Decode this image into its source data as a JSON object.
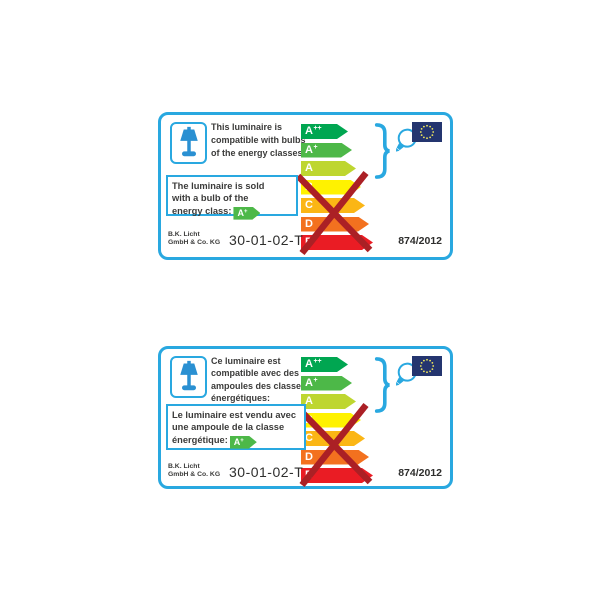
{
  "colors": {
    "accent": "#29a8e0",
    "lamp": "#2a90d2",
    "navy": "#24356f",
    "star": "#f3ea5c",
    "text": "#3b3b3a",
    "cross": "#ab2025",
    "model": "#2e2e2d"
  },
  "icons": {
    "luminaire": "table-lamp-icon",
    "bulb": "light-bulb-icon",
    "flag": "eu-flag-icon",
    "brace": "curly-brace",
    "cross": "red-cross-mark"
  },
  "labels": [
    {
      "language": "en",
      "intro_lines": [
        "This luminaire is",
        "compatible with bulbs",
        "of the energy classes:"
      ],
      "box_lines": [
        "The luminaire is sold",
        "with a bulb of the"
      ],
      "box_last_prefix": "energy class:",
      "badge": {
        "base": "A",
        "sup": "+",
        "color": "#4db848"
      },
      "manufacturer_lines": [
        "B.K. Licht",
        "GmbH & Co. KG"
      ],
      "model": "30-01-02-T",
      "regulation": "874/2012",
      "classes": [
        {
          "base": "A",
          "sup": "++",
          "color": "#00a651",
          "crossed": false
        },
        {
          "base": "A",
          "sup": "+",
          "color": "#4db848",
          "crossed": false
        },
        {
          "base": "A",
          "sup": "",
          "color": "#bed630",
          "crossed": false
        },
        {
          "base": "B",
          "sup": "",
          "color": "#fff200",
          "crossed": true
        },
        {
          "base": "C",
          "sup": "",
          "color": "#fbb615",
          "crossed": true
        },
        {
          "base": "D",
          "sup": "",
          "color": "#f3711f",
          "crossed": true
        },
        {
          "base": "E",
          "sup": "",
          "color": "#ea1c24",
          "crossed": true
        }
      ]
    },
    {
      "language": "fr",
      "intro_lines": [
        "Ce luminaire est",
        "compatible avec des",
        "ampoules des classes",
        "énergétiques:"
      ],
      "box_lines": [
        "Le luminaire est vendu avec",
        "une ampoule de la classe"
      ],
      "box_last_prefix": "énergétique:",
      "badge": {
        "base": "A",
        "sup": "+",
        "color": "#4db848"
      },
      "manufacturer_lines": [
        "B.K. Licht",
        "GmbH & Co. KG"
      ],
      "model": "30-01-02-T",
      "regulation": "874/2012",
      "classes": [
        {
          "base": "A",
          "sup": "++",
          "color": "#00a651",
          "crossed": false
        },
        {
          "base": "A",
          "sup": "+",
          "color": "#4db848",
          "crossed": false
        },
        {
          "base": "A",
          "sup": "",
          "color": "#bed630",
          "crossed": false
        },
        {
          "base": "B",
          "sup": "",
          "color": "#fff200",
          "crossed": true
        },
        {
          "base": "C",
          "sup": "",
          "color": "#fbb615",
          "crossed": true
        },
        {
          "base": "D",
          "sup": "",
          "color": "#f3711f",
          "crossed": true
        },
        {
          "base": "E",
          "sup": "",
          "color": "#ea1c24",
          "crossed": true
        }
      ]
    }
  ]
}
